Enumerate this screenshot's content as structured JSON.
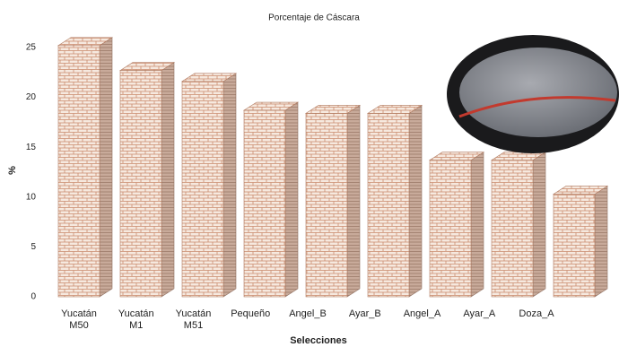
{
  "chart_data": {
    "type": "bar3d",
    "title": "Porcentaje de Cáscara",
    "y_label": "%",
    "x_label": "Selecciones",
    "categories": [
      "Yucatán M50",
      "Yucatán M1",
      "Yucatán M51",
      "Pequeño",
      "Angel_B",
      "Ayar_B",
      "Angel_A",
      "Ayar_A",
      "Doza_A",
      null
    ],
    "values": [
      25.2,
      22.7,
      21.6,
      18.7,
      18.4,
      18.4,
      13.7,
      13.7,
      10.3,
      null
    ],
    "ylim": [
      0,
      25
    ],
    "yticks": [
      0,
      5,
      10,
      15,
      20,
      25
    ],
    "color": "#f4e6dc"
  }
}
